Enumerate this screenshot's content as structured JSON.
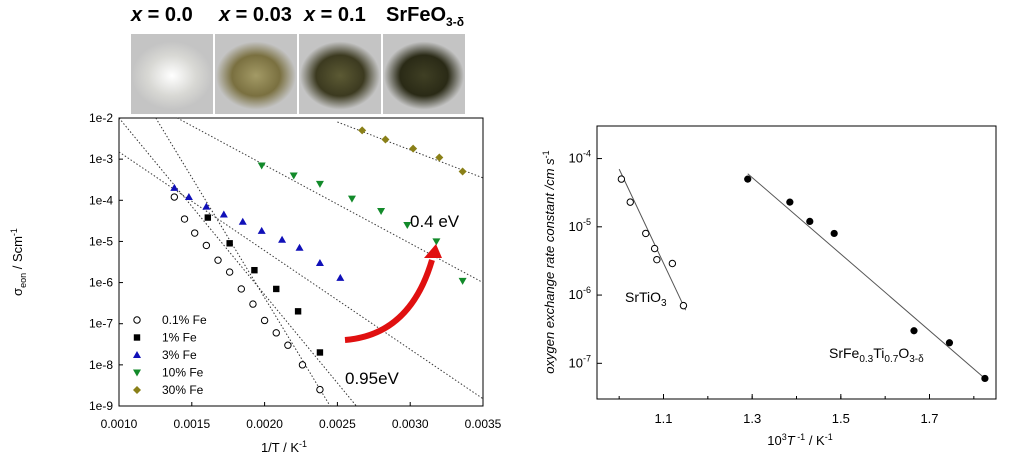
{
  "photos": [
    {
      "label_prefix": "x",
      "label_rest": " = 0.0",
      "bg": "#d8d8d4",
      "speck": "#ffffff"
    },
    {
      "label_prefix": "x",
      "label_rest": " = 0.03",
      "bg": "#7a7040",
      "speck": "#a39a66"
    },
    {
      "label_prefix": "x",
      "label_rest": " = 0.1",
      "bg": "#3c3a20",
      "speck": "#5c5a34"
    },
    {
      "label_prefix": "SrFeO",
      "label_sub": "3-δ",
      "bg": "#2a2a16",
      "speck": "#3f3f24"
    }
  ],
  "chart_data": [
    {
      "type": "scatter",
      "xlabel": "1/T    / K",
      "xlabel_sup": "-1",
      "ylabel": "σ",
      "ylabel_sub": "eon",
      "ylabel_rest": " / Scm",
      "ylabel_sup": "-1",
      "xlim": [
        0.001,
        0.0035
      ],
      "ylim": [
        1e-09,
        0.01
      ],
      "y_scale": "log",
      "x_ticks": [
        "0.0010",
        "0.0015",
        "0.0020",
        "0.0025",
        "0.0030",
        "0.0035"
      ],
      "y_ticks": [
        "1e-9",
        "1e-8",
        "1e-7",
        "1e-6",
        "1e-5",
        "1e-4",
        "1e-3",
        "1e-2"
      ],
      "legend_position": "bottom-left",
      "annotations": [
        {
          "text": "0.4 eV"
        },
        {
          "text": "0.95eV"
        }
      ],
      "arrow_color": "#e01010",
      "series": [
        {
          "name": "0.1% Fe",
          "marker": "open-circle",
          "color": "#000000",
          "x": [
            0.00138,
            0.00145,
            0.00152,
            0.0016,
            0.00168,
            0.00176,
            0.00184,
            0.00192,
            0.002,
            0.00208,
            0.00216,
            0.00226,
            0.00238
          ],
          "y": [
            0.00012,
            3.5e-05,
            1.6e-05,
            8e-06,
            3.5e-06,
            1.8e-06,
            7e-07,
            3e-07,
            1.2e-07,
            6e-08,
            3e-08,
            1e-08,
            2.5e-09
          ],
          "fit": {
            "x": [
              0.001,
              0.00245
            ],
            "y": [
              0.3,
              1e-09
            ]
          }
        },
        {
          "name": "1% Fe",
          "marker": "filled-square",
          "color": "#000000",
          "x": [
            0.00161,
            0.00176,
            0.00193,
            0.00208,
            0.00223,
            0.00238
          ],
          "y": [
            3.8e-05,
            9e-06,
            2e-06,
            7e-07,
            2e-07,
            2e-08
          ],
          "fit": {
            "x": [
              0.001,
              0.00263
            ],
            "y": [
              0.01,
              1e-09
            ]
          }
        },
        {
          "name": "3% Fe",
          "marker": "blue-triangle",
          "color": "#1010b8",
          "x": [
            0.00138,
            0.00148,
            0.0016,
            0.00172,
            0.00185,
            0.00198,
            0.00212,
            0.00224,
            0.00238,
            0.00252
          ],
          "y": [
            0.0002,
            0.00012,
            7e-05,
            4.5e-05,
            3e-05,
            1.8e-05,
            1.1e-05,
            7e-06,
            3e-06,
            1.3e-06
          ],
          "fit": {
            "x": [
              0.001,
              0.0035
            ],
            "y": [
              0.0015,
              1.5e-09
            ]
          }
        },
        {
          "name": "10% Fe",
          "marker": "green-triangle-down",
          "color": "#128a2a",
          "x": [
            0.00198,
            0.0022,
            0.00238,
            0.0026,
            0.0028,
            0.00298,
            0.00318,
            0.00336
          ],
          "y": [
            0.0007,
            0.0004,
            0.00025,
            0.00011,
            5.5e-05,
            2.5e-05,
            1e-05,
            1.1e-06
          ],
          "fit": {
            "x": [
              0.0014,
              0.0035
            ],
            "y": [
              0.01,
              1e-06
            ]
          }
        },
        {
          "name": "30% Fe",
          "marker": "olive-diamond",
          "color": "#8a8018",
          "x": [
            0.00267,
            0.00283,
            0.00302,
            0.0032,
            0.00336
          ],
          "y": [
            0.005,
            0.003,
            0.0018,
            0.0011,
            0.0005
          ],
          "fit": {
            "x": [
              0.0025,
              0.0035
            ],
            "y": [
              0.008,
              0.00035
            ]
          }
        }
      ]
    },
    {
      "type": "scatter",
      "xlabel_pre": "10",
      "xlabel_pre_sup": "3",
      "xlabel_var": "T",
      "xlabel_var_sup": " -1",
      "xlabel_rest": " / K",
      "xlabel_sup": "-1",
      "ylabel": "oxygen exchange rate constant /cm s",
      "ylabel_sup": "-1",
      "xlim": [
        0.95,
        1.85
      ],
      "ylim": [
        3e-08,
        0.0003
      ],
      "y_scale": "log",
      "x_ticks": [
        "1.1",
        "1.3",
        "1.5",
        "1.7"
      ],
      "y_ticks": [
        "10-7",
        "10-6",
        "10-5",
        "10-4"
      ],
      "series": [
        {
          "name": "SrTiO3",
          "label_main": "SrTiO",
          "label_sub": "3",
          "marker": "open-circle",
          "color": "#000000",
          "x": [
            1.005,
            1.025,
            1.06,
            1.08,
            1.085,
            1.12,
            1.145
          ],
          "y": [
            5e-05,
            2.3e-05,
            8e-06,
            4.8e-06,
            3.3e-06,
            2.9e-06,
            7e-07
          ],
          "fit": {
            "x": [
              1.0,
              1.15
            ],
            "y": [
              7e-05,
              6e-07
            ]
          }
        },
        {
          "name": "SrFe0.3Ti0.7O3-δ",
          "marker": "filled-circle",
          "color": "#000000",
          "x": [
            1.29,
            1.385,
            1.43,
            1.485,
            1.665,
            1.745,
            1.825
          ],
          "y": [
            5e-05,
            2.3e-05,
            1.2e-05,
            8e-06,
            3e-07,
            2e-07,
            6e-08
          ],
          "fit": {
            "x": [
              1.29,
              1.825
            ],
            "y": [
              6e-05,
              6e-08
            ]
          }
        }
      ],
      "series_label_parts": {
        "a": "SrFe",
        "b": "0.3",
        "c": "Ti",
        "d": "0.7",
        "e": "O",
        "f": "3-δ"
      }
    }
  ]
}
